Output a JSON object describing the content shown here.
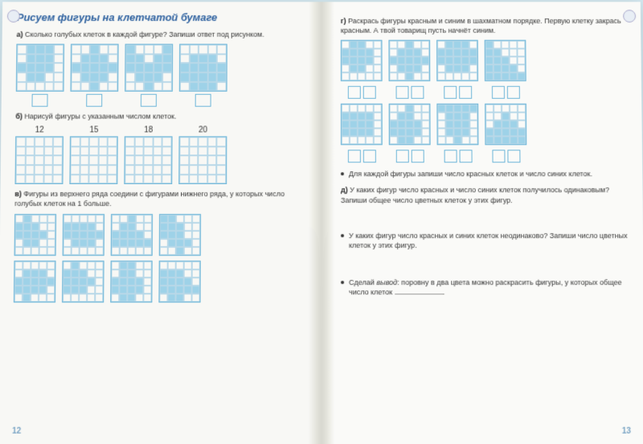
{
  "title": "Рисуем фигуры на клетчатой бумаге",
  "left": {
    "a": {
      "letter": "а)",
      "text": "Сколько голубых клеток в каждой фигуре? Запиши ответ под рисунком."
    },
    "b": {
      "letter": "б)",
      "text": "Нарисуй фигуры с указанным числом клеток.",
      "nums": [
        "12",
        "15",
        "18",
        "20"
      ]
    },
    "c": {
      "letter": "в)",
      "text": "Фигуры из верхнего ряда соедини с фигурами нижнего ряда, у которых число голубых клеток на 1 больше."
    },
    "pagenum": "12"
  },
  "right": {
    "g": {
      "letter": "г)",
      "text": "Раскрась фигуры красным и синим в шахматном порядке. Первую клетку закрась красным. А твой товарищ пусть начнёт синим."
    },
    "bullet1": "Для каждой фигуры запиши число красных клеток и число синих клеток.",
    "d": {
      "letter": "д)",
      "text": "У каких фигур число красных и число синих клеток получилось одинаковым? Запиши общее число цветных клеток у этих фигур."
    },
    "bullet2": "У каких фигур число красных и синих клеток неодинаково? Запиши число цветных клеток у этих фигур.",
    "bullet3a": "Сделай ",
    "bullet3b": "вывод",
    "bullet3c": ": поровну в два цвета можно раскрасить фигуры, у которых общее число клеток ",
    "pagenum": "13"
  },
  "grids": {
    "a": [
      [
        0,
        1,
        1,
        1,
        0,
        0,
        1,
        1,
        1,
        0,
        1,
        1,
        1,
        1,
        0,
        0,
        1,
        1,
        0,
        0,
        0,
        0,
        0,
        0,
        0
      ],
      [
        0,
        0,
        1,
        0,
        0,
        0,
        1,
        1,
        1,
        0,
        1,
        1,
        1,
        1,
        1,
        0,
        1,
        1,
        1,
        0,
        0,
        0,
        1,
        0,
        0
      ],
      [
        1,
        0,
        0,
        0,
        1,
        1,
        1,
        0,
        1,
        1,
        1,
        1,
        1,
        1,
        1,
        0,
        1,
        1,
        1,
        0,
        0,
        0,
        1,
        0,
        0
      ],
      [
        0,
        0,
        0,
        0,
        0,
        0,
        1,
        1,
        1,
        0,
        1,
        1,
        1,
        1,
        1,
        1,
        1,
        1,
        1,
        1,
        0,
        1,
        1,
        1,
        0
      ]
    ],
    "c_top": [
      [
        0,
        1,
        0,
        0,
        0,
        1,
        1,
        1,
        0,
        0,
        1,
        1,
        1,
        1,
        0,
        0,
        1,
        1,
        0,
        0,
        0,
        0,
        0,
        0,
        0
      ],
      [
        0,
        0,
        0,
        0,
        0,
        1,
        1,
        1,
        1,
        0,
        1,
        1,
        1,
        1,
        1,
        0,
        1,
        1,
        1,
        0,
        0,
        0,
        0,
        0,
        0
      ],
      [
        0,
        0,
        1,
        0,
        0,
        0,
        1,
        1,
        0,
        0,
        1,
        1,
        1,
        1,
        0,
        1,
        1,
        1,
        1,
        1,
        0,
        0,
        0,
        0,
        0
      ],
      [
        1,
        1,
        0,
        0,
        0,
        1,
        1,
        1,
        0,
        0,
        1,
        1,
        1,
        0,
        0,
        0,
        1,
        1,
        1,
        0,
        0,
        0,
        1,
        0,
        0
      ]
    ],
    "c_bot": [
      [
        0,
        0,
        0,
        0,
        0,
        0,
        1,
        1,
        1,
        0,
        1,
        1,
        1,
        1,
        1,
        1,
        1,
        1,
        1,
        0,
        0,
        1,
        0,
        0,
        0
      ],
      [
        0,
        1,
        0,
        0,
        0,
        1,
        1,
        1,
        0,
        0,
        1,
        1,
        1,
        1,
        0,
        1,
        1,
        1,
        0,
        0,
        0,
        0,
        0,
        0,
        0
      ],
      [
        0,
        1,
        1,
        0,
        0,
        0,
        1,
        1,
        0,
        0,
        1,
        1,
        1,
        1,
        0,
        1,
        1,
        1,
        1,
        0,
        0,
        1,
        1,
        0,
        0
      ],
      [
        0,
        0,
        0,
        0,
        0,
        1,
        1,
        1,
        0,
        0,
        1,
        1,
        1,
        1,
        0,
        1,
        1,
        1,
        1,
        1,
        0,
        1,
        1,
        0,
        0
      ]
    ],
    "g_top": [
      [
        0,
        1,
        1,
        0,
        0,
        1,
        1,
        1,
        1,
        0,
        1,
        1,
        1,
        1,
        0,
        0,
        1,
        1,
        0,
        0,
        0,
        0,
        0,
        0,
        0
      ],
      [
        0,
        0,
        1,
        0,
        0,
        0,
        1,
        1,
        1,
        0,
        1,
        1,
        1,
        1,
        1,
        0,
        1,
        1,
        1,
        0,
        0,
        0,
        1,
        0,
        0
      ],
      [
        0,
        1,
        1,
        1,
        0,
        1,
        1,
        1,
        1,
        1,
        1,
        1,
        1,
        1,
        1,
        0,
        1,
        1,
        1,
        0,
        0,
        0,
        0,
        0,
        0
      ],
      [
        1,
        0,
        0,
        0,
        0,
        1,
        1,
        0,
        0,
        0,
        1,
        1,
        1,
        0,
        0,
        1,
        1,
        1,
        1,
        0,
        1,
        1,
        1,
        1,
        1
      ]
    ],
    "g_bot": [
      [
        0,
        0,
        0,
        0,
        0,
        1,
        1,
        1,
        1,
        0,
        1,
        1,
        1,
        1,
        0,
        1,
        1,
        1,
        1,
        0,
        0,
        0,
        0,
        0,
        0
      ],
      [
        0,
        0,
        1,
        0,
        0,
        0,
        1,
        1,
        0,
        0,
        1,
        1,
        1,
        1,
        0,
        1,
        1,
        1,
        1,
        0,
        0,
        1,
        1,
        0,
        0
      ],
      [
        1,
        1,
        1,
        1,
        1,
        0,
        1,
        1,
        1,
        0,
        0,
        1,
        1,
        1,
        0,
        0,
        1,
        1,
        1,
        0,
        0,
        0,
        1,
        0,
        0
      ],
      [
        0,
        0,
        0,
        0,
        0,
        0,
        0,
        1,
        0,
        0,
        0,
        1,
        1,
        1,
        0,
        1,
        1,
        1,
        1,
        1,
        1,
        1,
        1,
        1,
        1
      ]
    ]
  }
}
